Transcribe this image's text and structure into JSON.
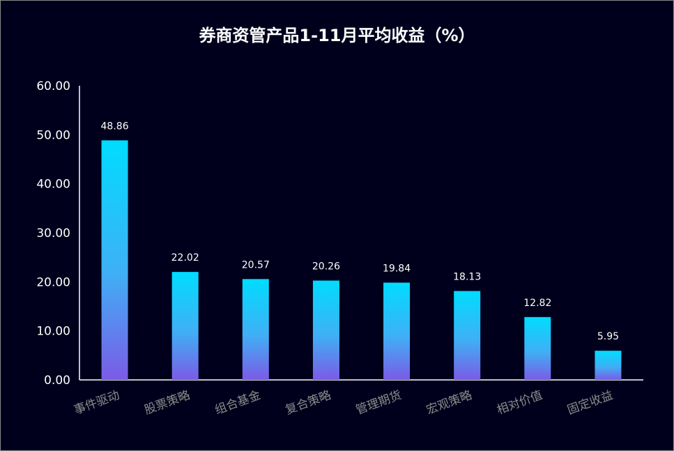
{
  "chart_data": {
    "type": "bar",
    "title": "券商资管产品1-11月平均收益（%）",
    "categories": [
      "事件驱动",
      "股票策略",
      "组合基金",
      "复合策略",
      "管理期货",
      "宏观策略",
      "相对价值",
      "固定收益"
    ],
    "values": [
      48.86,
      22.02,
      20.57,
      20.26,
      19.84,
      18.13,
      12.82,
      5.95
    ],
    "value_labels": [
      "48.86",
      "22.02",
      "20.57",
      "20.26",
      "19.84",
      "18.13",
      "12.82",
      "5.95"
    ],
    "y_ticks": [
      "0.00",
      "10.00",
      "20.00",
      "30.00",
      "40.00",
      "50.00",
      "60.00"
    ],
    "ylim": [
      0,
      60
    ],
    "xlabel": "",
    "ylabel": "",
    "grid": false,
    "legend": "none",
    "colors": {
      "background": "#00001c",
      "bar_top": "#00dcff",
      "bar_bottom": "#7b5be6",
      "axis": "#ffffff",
      "category_label": "#8c8c8c",
      "text": "#ffffff"
    }
  }
}
